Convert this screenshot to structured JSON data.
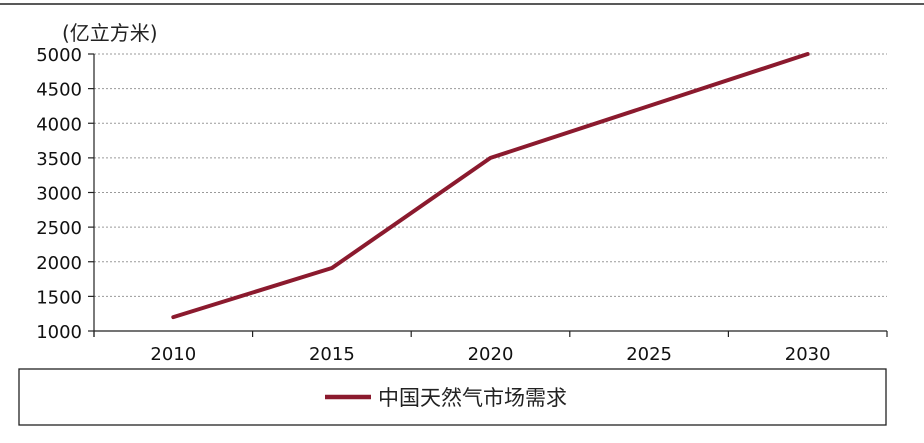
{
  "chart_data": {
    "type": "line",
    "ylabel": "(亿立方米)",
    "x": [
      "2010",
      "2015",
      "2020",
      "2025",
      "2030"
    ],
    "ylim": [
      1000,
      5000
    ],
    "yticks": [
      1000,
      1500,
      2000,
      2500,
      3000,
      3500,
      4000,
      4500,
      5000
    ],
    "grid": true,
    "legend": "bottom",
    "series": [
      {
        "name": "中国天然气市场需求",
        "color": "#8b1a2e",
        "values": [
          1200,
          1910,
          3500,
          null,
          5000
        ]
      }
    ]
  }
}
